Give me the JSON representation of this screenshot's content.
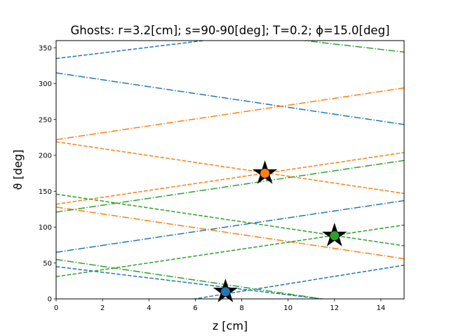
{
  "chart_data": {
    "type": "line",
    "title": "Ghosts: r=3.2[cm]; s=90-90[deg]; T=0.2; ϕ=15.0[deg]",
    "xlabel": "z [cm]",
    "ylabel": "ϑ [deg]",
    "xlim": [
      0,
      15
    ],
    "ylim": [
      0,
      360
    ],
    "xticks": [
      0,
      2,
      4,
      6,
      8,
      10,
      12,
      14
    ],
    "yticks": [
      0,
      50,
      100,
      150,
      200,
      250,
      300,
      350
    ],
    "grid": false,
    "series": [
      {
        "color": "#1f77b4",
        "style": "dashed",
        "x": [
          0,
          15
        ],
        "y": [
          335,
          394
        ]
      },
      {
        "color": "#1f77b4",
        "style": "dashed",
        "x": [
          0,
          15
        ],
        "y": [
          45,
          -14
        ]
      },
      {
        "color": "#1f77b4",
        "style": "dashed",
        "x": [
          0,
          15
        ],
        "y": [
          -31,
          47
        ]
      },
      {
        "color": "#1f77b4",
        "style": "dashdot",
        "x": [
          0,
          15
        ],
        "y": [
          315,
          243
        ]
      },
      {
        "color": "#1f77b4",
        "style": "dashdot",
        "x": [
          0,
          15
        ],
        "y": [
          65,
          137
        ]
      },
      {
        "color": "#ff7f0e",
        "style": "dashed",
        "x": [
          0,
          15
        ],
        "y": [
          219,
          147
        ]
      },
      {
        "color": "#ff7f0e",
        "style": "dashed",
        "x": [
          0,
          15
        ],
        "y": [
          132,
          204
        ]
      },
      {
        "color": "#ff7f0e",
        "style": "dashdot",
        "x": [
          0,
          15
        ],
        "y": [
          222,
          294
        ]
      },
      {
        "color": "#ff7f0e",
        "style": "dashdot",
        "x": [
          0,
          15
        ],
        "y": [
          128,
          56
        ]
      },
      {
        "color": "#2ca02c",
        "style": "dashed",
        "x": [
          0,
          15
        ],
        "y": [
          146,
          74
        ]
      },
      {
        "color": "#2ca02c",
        "style": "dashed",
        "x": [
          0,
          15
        ],
        "y": [
          31,
          103
        ]
      },
      {
        "color": "#2ca02c",
        "style": "dashdot",
        "x": [
          0,
          15
        ],
        "y": [
          121,
          193
        ]
      },
      {
        "color": "#2ca02c",
        "style": "dashdot",
        "x": [
          0,
          15
        ],
        "y": [
          55,
          -17
        ]
      },
      {
        "color": "#2ca02c",
        "style": "dashdot",
        "x": [
          0,
          15
        ],
        "y": [
          400,
          344
        ]
      }
    ],
    "markers": [
      {
        "x": 7.3,
        "y": 10,
        "color": "#1f77b4"
      },
      {
        "x": 9.0,
        "y": 175,
        "color": "#ff7f0e"
      },
      {
        "x": 12.0,
        "y": 88,
        "color": "#2ca02c"
      }
    ]
  }
}
